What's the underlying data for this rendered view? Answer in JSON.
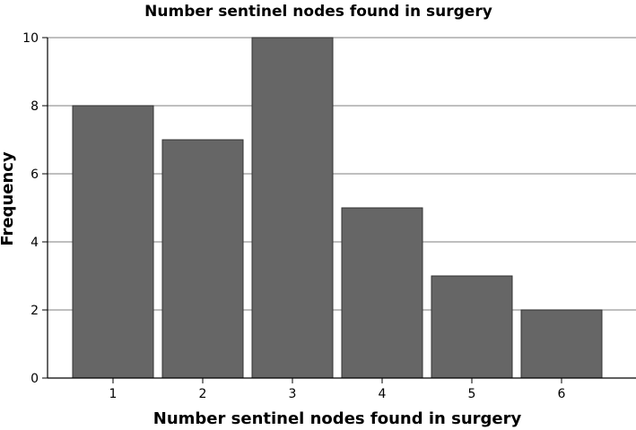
{
  "chart_data": {
    "type": "bar",
    "title": "Number sentinel nodes found in surgery",
    "xlabel": "Number sentinel nodes found in surgery",
    "ylabel": "Frequency",
    "categories": [
      "1",
      "2",
      "3",
      "4",
      "5",
      "6"
    ],
    "values": [
      8,
      7,
      10,
      5,
      3,
      2
    ],
    "ylim": [
      0,
      10
    ],
    "yticks": [
      "0",
      "2",
      "4",
      "6",
      "8",
      "10"
    ],
    "grid": true,
    "bar_color": "#666666",
    "grid_color": "#999999"
  }
}
